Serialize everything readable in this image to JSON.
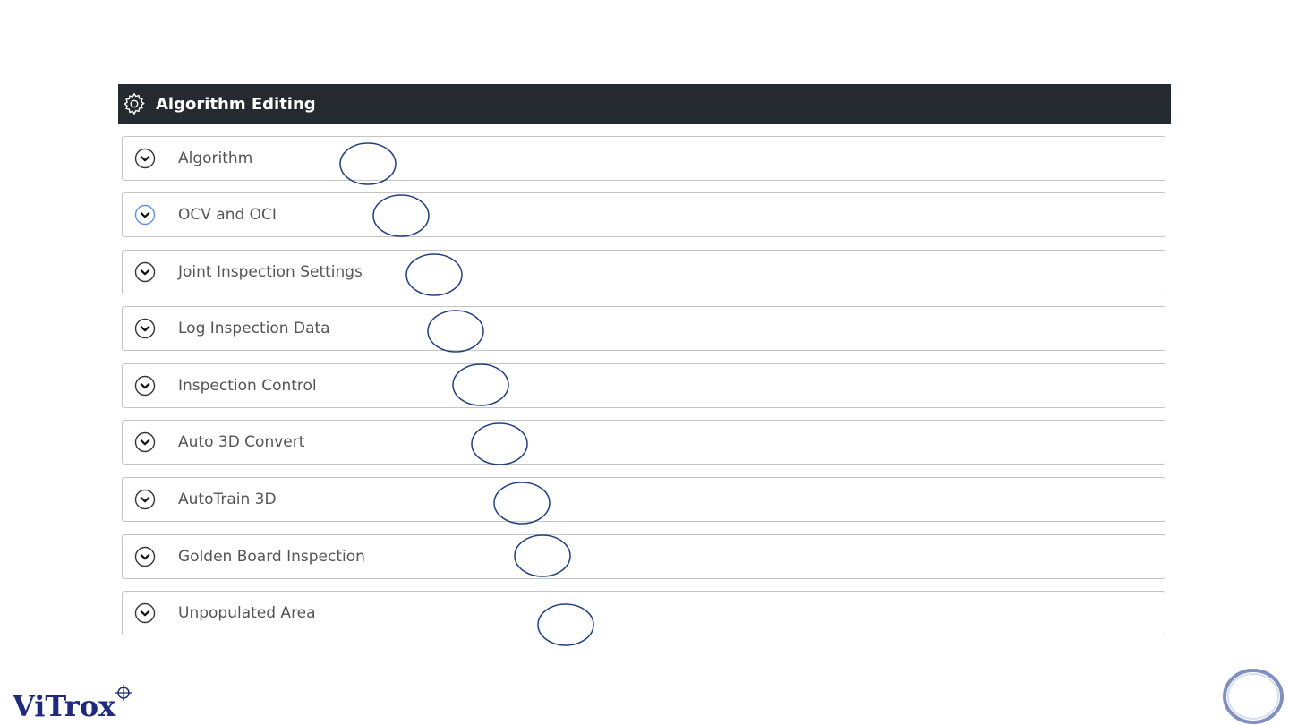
{
  "header": {
    "title": "Algorithm Editing",
    "icon": "gear-icon"
  },
  "sections": [
    {
      "label": "Algorithm",
      "highlighted": false
    },
    {
      "label": "OCV and OCI",
      "highlighted": true
    },
    {
      "label": "Joint Inspection Settings",
      "highlighted": false
    },
    {
      "label": "Log Inspection Data",
      "highlighted": false
    },
    {
      "label": "Inspection Control",
      "highlighted": false
    },
    {
      "label": "Auto 3D Convert",
      "highlighted": false
    },
    {
      "label": "AutoTrain 3D",
      "highlighted": false
    },
    {
      "label": "Golden Board Inspection",
      "highlighted": false
    },
    {
      "label": "Unpopulated Area",
      "highlighted": false
    }
  ],
  "logo": {
    "text": "ViTrox"
  },
  "colors": {
    "header_bg": "#252a31",
    "annotation": "#1f3f80",
    "logo": "#1f2a7a"
  }
}
